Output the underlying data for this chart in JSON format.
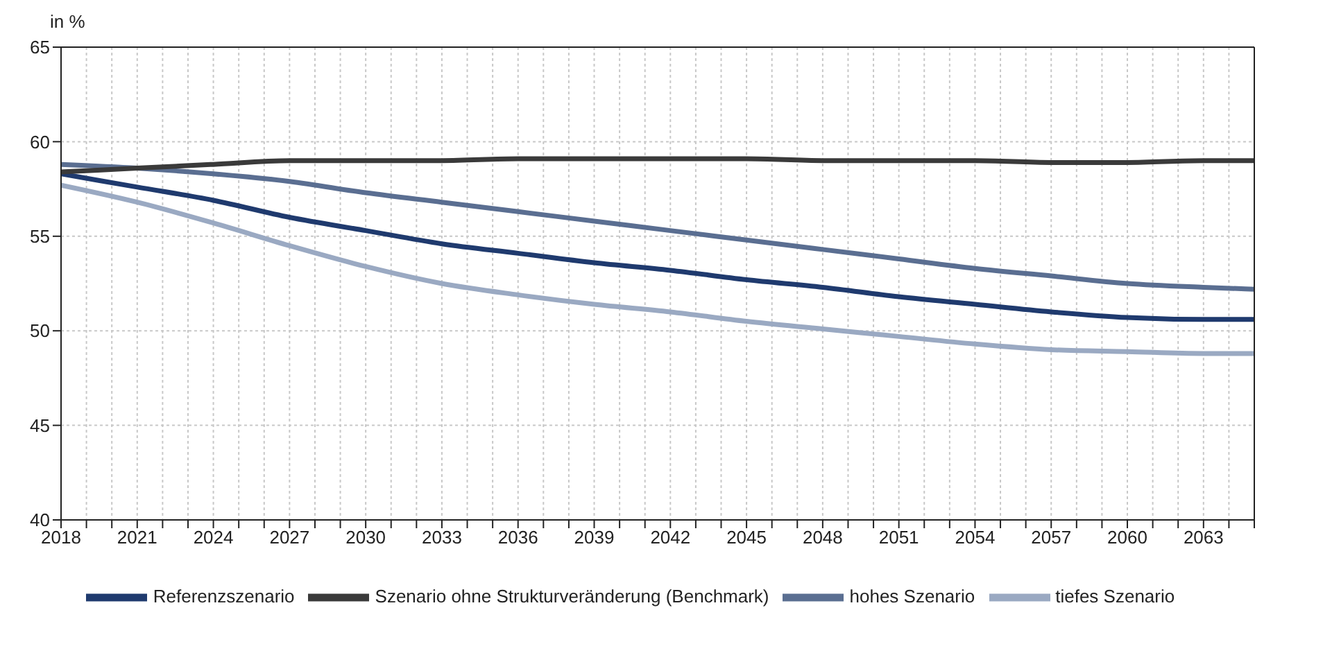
{
  "chart_data": {
    "type": "line",
    "ylabel": "in %",
    "x": [
      2018,
      2021,
      2024,
      2027,
      2030,
      2033,
      2036,
      2039,
      2042,
      2045,
      2048,
      2051,
      2054,
      2057,
      2060,
      2063,
      2065
    ],
    "series": [
      {
        "name": "Referenzszenario",
        "color": "#1f3a6e",
        "values": [
          58.3,
          57.6,
          56.9,
          56.0,
          55.3,
          54.6,
          54.1,
          53.6,
          53.2,
          52.7,
          52.3,
          51.8,
          51.4,
          51.0,
          50.7,
          50.6,
          50.6
        ]
      },
      {
        "name": "hohes Szenario",
        "color": "#5a6e91",
        "values": [
          58.8,
          58.6,
          58.3,
          57.9,
          57.3,
          56.8,
          56.3,
          55.8,
          55.3,
          54.8,
          54.3,
          53.8,
          53.3,
          52.9,
          52.5,
          52.3,
          52.2
        ]
      },
      {
        "name": "tiefes Szenario",
        "color": "#9aa9c2",
        "values": [
          57.7,
          56.8,
          55.7,
          54.5,
          53.4,
          52.5,
          51.9,
          51.4,
          51.0,
          50.5,
          50.1,
          49.7,
          49.3,
          49.0,
          48.9,
          48.8,
          48.8
        ]
      },
      {
        "name": "Szenario ohne Strukturveränderung (Benchmark)",
        "color": "#3a3a3a",
        "values": [
          58.4,
          58.6,
          58.8,
          59.0,
          59.0,
          59.0,
          59.1,
          59.1,
          59.1,
          59.1,
          59.0,
          59.0,
          59.0,
          58.9,
          58.9,
          59.0,
          59.0
        ]
      }
    ],
    "xlim": [
      2018,
      2065
    ],
    "xticks": [
      2018,
      {
        "value": 2019,
        "label": null
      },
      {
        "value": 2020,
        "label": null
      },
      2021,
      {
        "value": 2022,
        "label": null
      },
      {
        "value": 2023,
        "label": null
      },
      2024,
      {
        "value": 2025,
        "label": null
      },
      {
        "value": 2026,
        "label": null
      },
      2027,
      {
        "value": 2028,
        "label": null
      },
      {
        "value": 2029,
        "label": null
      },
      2030,
      {
        "value": 2031,
        "label": null
      },
      {
        "value": 2032,
        "label": null
      },
      2033,
      {
        "value": 2034,
        "label": null
      },
      {
        "value": 2035,
        "label": null
      },
      2036,
      {
        "value": 2037,
        "label": null
      },
      {
        "value": 2038,
        "label": null
      },
      2039,
      {
        "value": 2040,
        "label": null
      },
      {
        "value": 2041,
        "label": null
      },
      2042,
      {
        "value": 2043,
        "label": null
      },
      {
        "value": 2044,
        "label": null
      },
      2045,
      {
        "value": 2046,
        "label": null
      },
      {
        "value": 2047,
        "label": null
      },
      2048,
      {
        "value": 2049,
        "label": null
      },
      {
        "value": 2050,
        "label": null
      },
      2051,
      {
        "value": 2052,
        "label": null
      },
      {
        "value": 2053,
        "label": null
      },
      2054,
      {
        "value": 2055,
        "label": null
      },
      {
        "value": 2056,
        "label": null
      },
      2057,
      {
        "value": 2058,
        "label": null
      },
      {
        "value": 2059,
        "label": null
      },
      2060,
      {
        "value": 2061,
        "label": null
      },
      {
        "value": 2062,
        "label": null
      },
      2063,
      {
        "value": 2064,
        "label": null
      },
      {
        "value": 2065,
        "label": null
      }
    ],
    "ylim": [
      40,
      65
    ],
    "yticks": [
      40,
      45,
      50,
      55,
      60,
      65
    ],
    "grid": true,
    "legend": "bottom",
    "marker": "none",
    "line_style": "solid"
  }
}
